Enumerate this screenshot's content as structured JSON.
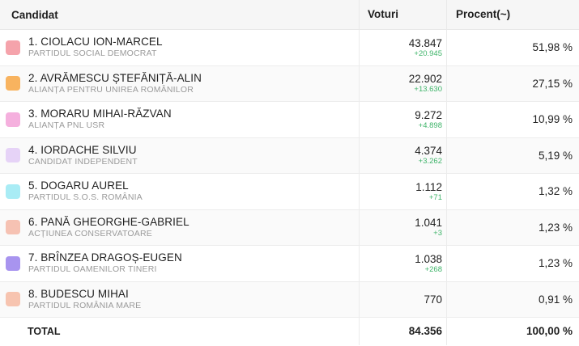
{
  "header": {
    "candidate": "Candidat",
    "votes": "Voturi",
    "percent": "Procent(~)"
  },
  "rows": [
    {
      "name": "1. CIOLACU ION-MARCEL",
      "party": "PARTIDUL SOCIAL DEMOCRAT",
      "votes": "43.847",
      "delta": "+20.945",
      "percent": "51,98 %",
      "color": "#f5a3ab"
    },
    {
      "name": "2. AVRĂMESCU ȘTEFĂNIȚĂ-ALIN",
      "party": "ALIANȚA PENTRU UNIREA ROMÂNILOR",
      "votes": "22.902",
      "delta": "+13.630",
      "percent": "27,15 %",
      "color": "#f8b35f"
    },
    {
      "name": "3. MORARU MIHAI-RĂZVAN",
      "party": "ALIANȚA PNL USR",
      "votes": "9.272",
      "delta": "+4.898",
      "percent": "10,99 %",
      "color": "#f5b0de"
    },
    {
      "name": "4. IORDACHE SILVIU",
      "party": "CANDIDAT INDEPENDENT",
      "votes": "4.374",
      "delta": "+3.262",
      "percent": "5,19 %",
      "color": "#e6d3f7"
    },
    {
      "name": "5. DOGARU AUREL",
      "party": "PARTIDUL S.O.S. ROMÂNIA",
      "votes": "1.112",
      "delta": "+71",
      "percent": "1,32 %",
      "color": "#a9ecf5"
    },
    {
      "name": "6. PANĂ GHEORGHE-GABRIEL",
      "party": "ACȚIUNEA CONSERVATOARE",
      "votes": "1.041",
      "delta": "+3",
      "percent": "1,23 %",
      "color": "#f6c2b3"
    },
    {
      "name": "7. BRÎNZEA DRAGOȘ-EUGEN",
      "party": "PARTIDUL OAMENILOR TINERI",
      "votes": "1.038",
      "delta": "+268",
      "percent": "1,23 %",
      "color": "#a894ef"
    },
    {
      "name": "8. BUDESCU MIHAI",
      "party": "PARTIDUL ROMÂNIA MARE",
      "votes": "770",
      "delta": "",
      "percent": "0,91 %",
      "color": "#f7c4b0"
    }
  ],
  "total": {
    "label": "TOTAL",
    "votes": "84.356",
    "percent": "100,00 %"
  }
}
